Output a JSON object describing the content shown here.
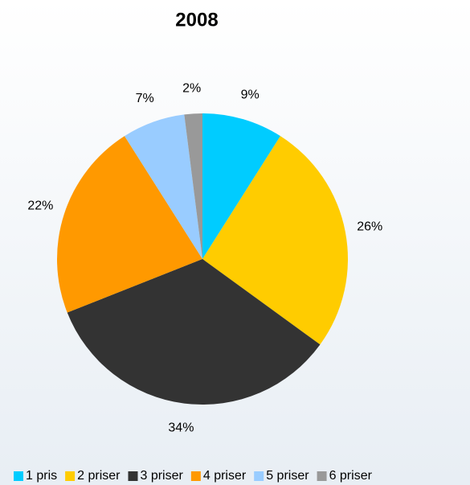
{
  "chart_data": {
    "type": "pie",
    "title": "2008",
    "categories": [
      "1 pris",
      "2 priser",
      "3 priser",
      "4 priser",
      "5 priser",
      "6 priser"
    ],
    "values": [
      9,
      26,
      34,
      22,
      7,
      2
    ],
    "value_labels": [
      "9%",
      "26%",
      "34%",
      "22%",
      "7%",
      "2%"
    ],
    "colors": [
      "#00ccff",
      "#ffcc00",
      "#333333",
      "#ff9900",
      "#99ccff",
      "#999999"
    ],
    "legend": "bottom"
  }
}
